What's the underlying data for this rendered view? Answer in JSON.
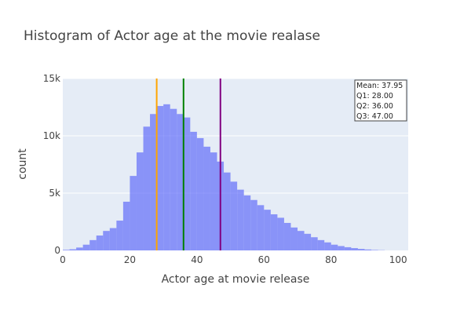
{
  "chart_data": {
    "type": "bar",
    "title": "Histogram of Actor age at the movie realase",
    "xlabel": "Actor age at movie release",
    "ylabel": "count",
    "xlim": [
      0,
      103
    ],
    "ylim": [
      0,
      15000
    ],
    "x_ticks": [
      0,
      20,
      40,
      60,
      80,
      100
    ],
    "x_tick_labels": [
      "0",
      "20",
      "40",
      "60",
      "80",
      "100"
    ],
    "y_ticks": [
      0,
      5000,
      10000,
      15000
    ],
    "y_tick_labels": [
      "0",
      "5k",
      "10k",
      "15k"
    ],
    "grid": true,
    "bin_width": 2,
    "bins_start": [
      0,
      2,
      4,
      6,
      8,
      10,
      12,
      14,
      16,
      18,
      20,
      22,
      24,
      26,
      28,
      30,
      32,
      34,
      36,
      38,
      40,
      42,
      44,
      46,
      48,
      50,
      52,
      54,
      56,
      58,
      60,
      62,
      64,
      66,
      68,
      70,
      72,
      74,
      76,
      78,
      80,
      82,
      84,
      86,
      88,
      90,
      92,
      94
    ],
    "values": [
      50,
      100,
      250,
      500,
      900,
      1300,
      1700,
      1950,
      2600,
      4250,
      6500,
      8550,
      10800,
      11900,
      12600,
      12750,
      12350,
      11900,
      11600,
      10350,
      9800,
      9050,
      8550,
      7750,
      6800,
      6000,
      5300,
      4800,
      4400,
      3950,
      3550,
      3150,
      2850,
      2400,
      2000,
      1700,
      1450,
      1150,
      900,
      700,
      500,
      380,
      280,
      200,
      130,
      80,
      40,
      20
    ],
    "bar_color": "#636efa",
    "vlines": [
      {
        "x": 28,
        "color": "#ffa500"
      },
      {
        "x": 36,
        "color": "#008000"
      },
      {
        "x": 47,
        "color": "#800080"
      }
    ],
    "stats_box": {
      "lines": [
        "Mean: 37.95",
        "Q1: 28.00",
        "Q2: 36.00",
        "Q3: 47.00"
      ],
      "placement": "top-right"
    },
    "plot_background": "#e5ecf6"
  }
}
